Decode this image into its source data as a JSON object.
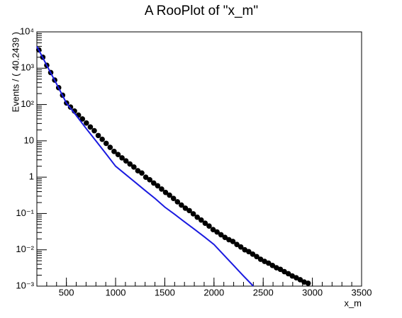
{
  "chart_data": {
    "type": "scatter",
    "title": "A RooPlot of \"x_m\"",
    "x_label": "x_m",
    "y_label": "Events / ( 40.2439 )",
    "log_y": true,
    "xlim": [
      200,
      3500
    ],
    "ylim": [
      0.001,
      10000
    ],
    "xticks": [
      500,
      1000,
      1500,
      2000,
      2500,
      3000,
      3500
    ],
    "yticks": [
      {
        "value": 0.001,
        "label": "10⁻³"
      },
      {
        "value": 0.01,
        "label": "10⁻²"
      },
      {
        "value": 0.1,
        "label": "10⁻¹"
      },
      1,
      10,
      {
        "value": 100,
        "label": "10²"
      },
      {
        "value": 1000,
        "label": "10³"
      },
      {
        "value": 10000,
        "label": "10⁴"
      }
    ],
    "series": [
      {
        "kind": "points",
        "color": "#000000",
        "x": [
          220.1,
          260.4,
          300.6,
          340.9,
          381.1,
          421.3,
          461.6,
          501.8,
          542.1,
          582.3,
          622.6,
          662.8,
          703.0,
          743.3,
          783.5,
          823.8,
          864.0,
          904.3,
          944.5,
          984.8,
          1025.0,
          1065.2,
          1105.5,
          1145.7,
          1186.0,
          1226.2,
          1266.5,
          1306.7,
          1347.0,
          1387.2,
          1427.4,
          1467.7,
          1507.9,
          1548.2,
          1588.4,
          1628.7,
          1668.9,
          1709.1,
          1749.4,
          1789.6,
          1829.9,
          1870.1,
          1910.4,
          1950.6,
          1990.9,
          2031.1,
          2071.3,
          2111.6,
          2151.8,
          2192.1,
          2232.3,
          2272.6,
          2312.8,
          2353.0,
          2393.3,
          2433.5,
          2473.8,
          2514.0,
          2554.3,
          2594.5,
          2634.8,
          2675.0,
          2715.2,
          2755.5,
          2795.7,
          2836.0,
          2876.2,
          2916.5,
          2956.7
        ],
        "values": [
          3200,
          2000,
          1200,
          760,
          470,
          290,
          180,
          110,
          85,
          66,
          51,
          40,
          31,
          24,
          19,
          14,
          11,
          8.5,
          6.6,
          5.1,
          4.2,
          3.4,
          2.8,
          2.3,
          1.9,
          1.5,
          1.3,
          1.0,
          0.85,
          0.69,
          0.58,
          0.47,
          0.38,
          0.32,
          0.26,
          0.21,
          0.17,
          0.14,
          0.12,
          0.098,
          0.079,
          0.066,
          0.054,
          0.045,
          0.036,
          0.031,
          0.026,
          0.022,
          0.019,
          0.017,
          0.014,
          0.012,
          0.01,
          0.0089,
          0.0076,
          0.0065,
          0.0055,
          0.0048,
          0.0043,
          0.0037,
          0.0032,
          0.0029,
          0.0025,
          0.0022,
          0.0019,
          0.0017,
          0.0015,
          0.0013,
          0.0012
        ]
      },
      {
        "kind": "line",
        "color": "#1a1ae0",
        "x": [
          200,
          300,
          400,
          500,
          600,
          700,
          800,
          900,
          1000,
          1100,
          1200,
          1300,
          1400,
          1500,
          1600,
          1700,
          1800,
          1900,
          2000,
          2100,
          2200,
          2300,
          2400
        ],
        "values": [
          4000,
          1200,
          370,
          110,
          50,
          22,
          10,
          4.5,
          2.0,
          1.2,
          0.72,
          0.43,
          0.26,
          0.15,
          0.095,
          0.059,
          0.037,
          0.023,
          0.014,
          0.0072,
          0.0037,
          0.0019,
          0.001
        ]
      }
    ]
  }
}
